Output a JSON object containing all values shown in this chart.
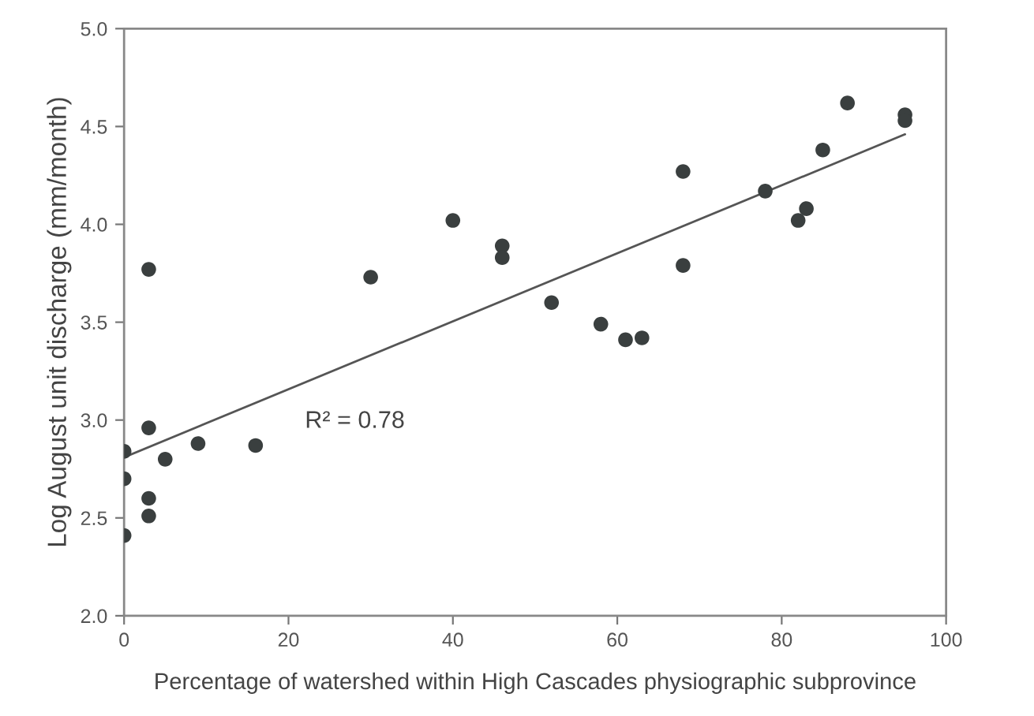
{
  "chart_data": {
    "type": "scatter",
    "xlabel": "Percentage of watershed within High Cascades physiographic subprovince",
    "ylabel": "Log August unit discharge (mm/month)",
    "series": [
      {
        "color": "#3a3f3f",
        "marker": "circle",
        "x": [
          0,
          0,
          0,
          3,
          3,
          3,
          3,
          5,
          9,
          16,
          30,
          40,
          46,
          46,
          52,
          58,
          61,
          63,
          68,
          68,
          78,
          82,
          83,
          85,
          88,
          95,
          95
        ],
        "values": [
          2.84,
          2.7,
          2.41,
          3.77,
          2.96,
          2.6,
          2.51,
          2.8,
          2.88,
          2.87,
          3.73,
          4.02,
          3.89,
          3.83,
          3.6,
          3.49,
          3.41,
          3.42,
          4.27,
          3.79,
          4.17,
          4.02,
          4.08,
          4.38,
          4.62,
          4.56,
          4.53
        ]
      },
      {
        "type": "line",
        "marker": "none",
        "color": "#555555",
        "x": [
          0,
          95
        ],
        "values": [
          2.81,
          4.46
        ]
      }
    ],
    "annotations": [
      "R² = 0.78"
    ],
    "xlim": [
      0,
      100
    ],
    "xticks": [
      0,
      20,
      40,
      60,
      80,
      100
    ],
    "ylim": [
      2.0,
      5.0
    ],
    "yticks": [
      {
        "value": 2.0,
        "label": "2.0"
      },
      {
        "value": 2.5,
        "label": "2.5"
      },
      {
        "value": 3.0,
        "label": "3.0"
      },
      {
        "value": 3.5,
        "label": "3.5"
      },
      {
        "value": 4.0,
        "label": "4.0"
      },
      {
        "value": 4.5,
        "label": "4.5"
      },
      {
        "value": 5.0,
        "label": "5.0"
      }
    ],
    "grid": false,
    "legend": false
  }
}
